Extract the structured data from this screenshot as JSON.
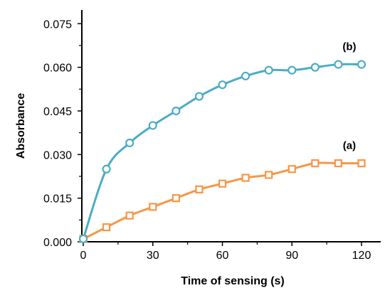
{
  "chart_data": {
    "type": "line",
    "xlabel": "Time  of sensing  (s)",
    "ylabel": "Absorbance",
    "xlim": [
      0,
      125
    ],
    "ylim": [
      0,
      0.08
    ],
    "x_ticks": [
      "0",
      "30",
      "60",
      "90",
      "120"
    ],
    "x_tick_values": [
      0,
      30,
      60,
      90,
      120
    ],
    "y_ticks": [
      "0.000",
      "0.015",
      "0.030",
      "0.045",
      "0.060",
      "0.075"
    ],
    "y_tick_values": [
      0,
      0.015,
      0.03,
      0.045,
      0.06,
      0.075
    ],
    "grid": false,
    "x": [
      0,
      10,
      20,
      30,
      40,
      50,
      60,
      70,
      80,
      90,
      100,
      110,
      120
    ],
    "series": [
      {
        "name": "(b)",
        "color": "#4BACC6",
        "marker": "circle",
        "values": [
          0.001,
          0.025,
          0.034,
          0.04,
          0.045,
          0.05,
          0.054,
          0.057,
          0.059,
          0.059,
          0.06,
          0.061,
          0.061
        ]
      },
      {
        "name": "(a)",
        "color": "#F79646",
        "marker": "square",
        "values": [
          0.001,
          0.005,
          0.009,
          0.012,
          0.015,
          0.018,
          0.02,
          0.022,
          0.023,
          0.025,
          0.027,
          0.027,
          0.027
        ]
      }
    ]
  }
}
